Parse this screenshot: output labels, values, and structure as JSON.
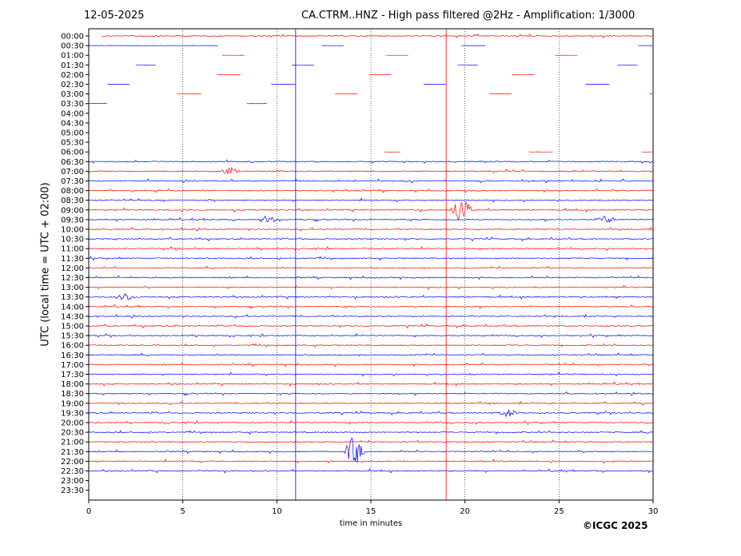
{
  "header": {
    "date": "12-05-2025",
    "title": "CA.CTRM..HNZ - High pass filtered @2Hz - Amplification: 1/3000"
  },
  "footer": {
    "copyright": "©ICGC 2025"
  },
  "chart_data": {
    "type": "line",
    "title": "CA.CTRM..HNZ - High pass filtered @2Hz - Amplification: 1/3000",
    "xlabel": "time in minutes",
    "ylabel": "UTC (local time = UTC + 02:00)",
    "xlim": [
      0,
      30
    ],
    "x_ticks": [
      0,
      5,
      10,
      15,
      20,
      25,
      30
    ],
    "y_ticks": [
      "00:00",
      "00:30",
      "01:00",
      "01:30",
      "02:00",
      "02:30",
      "03:00",
      "03:30",
      "04:00",
      "04:30",
      "05:00",
      "05:30",
      "06:00",
      "06:30",
      "07:00",
      "07:30",
      "08:00",
      "08:30",
      "09:00",
      "09:30",
      "10:00",
      "10:30",
      "11:00",
      "11:30",
      "12:00",
      "12:30",
      "13:00",
      "13:30",
      "14:00",
      "14:30",
      "15:00",
      "15:30",
      "16:00",
      "16:30",
      "17:00",
      "17:30",
      "18:00",
      "18:30",
      "19:00",
      "19:30",
      "20:00",
      "20:30",
      "21:00",
      "21:30",
      "22:00",
      "22:30",
      "23:00",
      "23:30"
    ],
    "grid": "vertical dotted at 5-minute intervals",
    "series_colors": {
      "even_rows": "#ff0000",
      "odd_rows": "#0000ff"
    },
    "data_rows_start": "06:00",
    "data_rows_end": "22:30",
    "partial_rows": [
      {
        "row": "00:00",
        "segments": [
          [
            0.7,
            30
          ]
        ]
      },
      {
        "row": "00:30",
        "segments": [
          [
            0,
            6.9
          ],
          [
            12.4,
            13.6
          ],
          [
            19.8,
            21.1
          ],
          [
            29.2,
            30
          ]
        ]
      },
      {
        "row": "01:00",
        "segments": [
          [
            7.1,
            8.3
          ],
          [
            15.8,
            17.0
          ],
          [
            24.8,
            26.0
          ]
        ]
      },
      {
        "row": "01:30",
        "segments": [
          [
            2.5,
            3.6
          ],
          [
            10.8,
            12.0
          ],
          [
            19.6,
            20.7
          ],
          [
            28.1,
            29.2
          ]
        ]
      },
      {
        "row": "02:00",
        "segments": [
          [
            6.8,
            8.1
          ],
          [
            14.9,
            16.1
          ],
          [
            22.5,
            23.7
          ]
        ]
      },
      {
        "row": "02:30",
        "segments": [
          [
            1.0,
            2.2
          ],
          [
            9.7,
            11.0
          ],
          [
            17.8,
            19.0
          ],
          [
            26.4,
            27.7
          ]
        ]
      },
      {
        "row": "03:00",
        "segments": [
          [
            4.7,
            6.0
          ],
          [
            13.1,
            14.3
          ],
          [
            21.3,
            22.5
          ],
          [
            29.8,
            30
          ]
        ]
      },
      {
        "row": "03:30",
        "segments": [
          [
            0,
            1.0
          ],
          [
            8.4,
            9.5
          ]
        ]
      },
      {
        "row": "06:00",
        "segments": [
          [
            15.7,
            16.6
          ],
          [
            23.4,
            24.7
          ],
          [
            29.4,
            30
          ]
        ]
      }
    ],
    "events": [
      {
        "time": "07:00",
        "minute": 7.5,
        "amplitude": "medium"
      },
      {
        "time": "09:00",
        "minute": 19.8,
        "amplitude": "large"
      },
      {
        "time": "09:30",
        "minute": 9.5,
        "amplitude": "medium"
      },
      {
        "time": "09:30",
        "minute": 27.5,
        "amplitude": "medium"
      },
      {
        "time": "13:30",
        "minute": 2.0,
        "amplitude": "medium"
      },
      {
        "time": "19:30",
        "minute": 22.3,
        "amplitude": "medium"
      },
      {
        "time": "21:30",
        "minute": 14.1,
        "amplitude": "large"
      }
    ],
    "vertical_spikes": [
      {
        "minute": 11.0,
        "color": "blue"
      },
      {
        "minute": 19.0,
        "color": "red"
      }
    ]
  }
}
